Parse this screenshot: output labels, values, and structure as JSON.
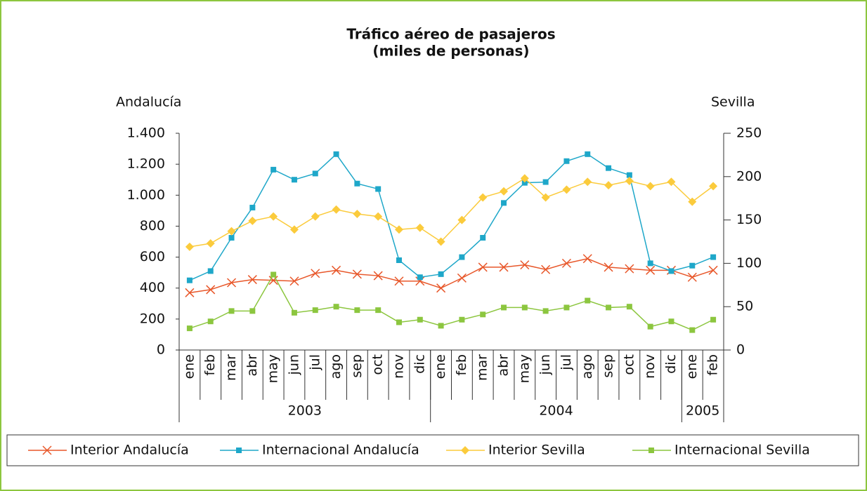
{
  "chart_data": {
    "type": "line",
    "title": "Tráfico aéreo de pasajeros",
    "subtitle": "(miles de personas)",
    "y_label": "Andalucía",
    "y2_label": "Sevilla",
    "categories": [
      "ene",
      "feb",
      "mar",
      "abr",
      "may",
      "jun",
      "jul",
      "ago",
      "sep",
      "oct",
      "nov",
      "dic",
      "ene",
      "feb",
      "mar",
      "abr",
      "may",
      "jun",
      "jul",
      "ago",
      "sep",
      "oct",
      "nov",
      "dic",
      "ene",
      "feb"
    ],
    "year_groups": [
      "2003",
      "2004",
      "2005"
    ],
    "ylim": [
      0,
      1400
    ],
    "yticks": [
      0,
      200,
      400,
      600,
      800,
      {
        "value": 1000,
        "label": "1.000"
      },
      {
        "value": 1200,
        "label": "1.200"
      },
      {
        "value": 1400,
        "label": "1.400"
      }
    ],
    "y2lim": [
      0,
      250
    ],
    "y2ticks": [
      0,
      50,
      100,
      150,
      200,
      250
    ],
    "grid": false,
    "legend": "bottom",
    "series": [
      {
        "name": "Interior Andalucía",
        "color": "#e8572a",
        "marker": "cross",
        "axis": "y",
        "values": [
          370,
          390,
          435,
          455,
          450,
          445,
          495,
          515,
          490,
          480,
          445,
          445,
          400,
          465,
          535,
          535,
          550,
          520,
          560,
          590,
          535,
          525,
          515,
          515,
          470,
          515
        ]
      },
      {
        "name": "Internacional Andalucía",
        "color": "#1ea7c9",
        "marker": "square",
        "axis": "y",
        "values": [
          450,
          510,
          725,
          920,
          1165,
          1100,
          1140,
          1265,
          1075,
          1040,
          580,
          470,
          490,
          600,
          725,
          950,
          1080,
          1085,
          1220,
          1265,
          1175,
          1130,
          560,
          510,
          545,
          600
        ]
      },
      {
        "name": "Interior Sevilla",
        "color": "#fbcb3c",
        "marker": "diamond",
        "axis": "y2",
        "values": [
          119,
          123,
          137,
          149,
          154,
          139,
          154,
          162,
          157,
          154,
          139,
          141,
          125,
          150,
          176,
          183,
          198,
          176,
          185,
          194,
          190,
          195,
          189,
          194,
          171,
          189
        ]
      },
      {
        "name": "Internacional Sevilla",
        "color": "#8cc63f",
        "marker": "square",
        "axis": "y2",
        "values": [
          25,
          33,
          45,
          45,
          87,
          43,
          46,
          50,
          46,
          46,
          32,
          35,
          28,
          35,
          41,
          49,
          49,
          45,
          49,
          57,
          49,
          50,
          27,
          33,
          23,
          35
        ]
      }
    ]
  }
}
